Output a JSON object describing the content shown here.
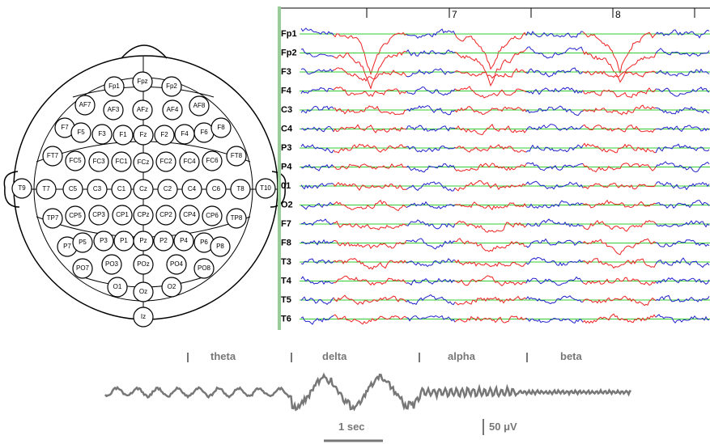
{
  "electrode_map": {
    "electrodes": [
      "Fp1",
      "Fpz",
      "Fp2",
      "AF7",
      "AF3",
      "AFz",
      "AF4",
      "AF8",
      "F7",
      "F5",
      "F3",
      "F1",
      "Fz",
      "F2",
      "F4",
      "F6",
      "F8",
      "FT7",
      "FC5",
      "FC3",
      "FC1",
      "FCz",
      "FC2",
      "FC4",
      "FC6",
      "FT8",
      "T9",
      "T7",
      "C5",
      "C3",
      "C1",
      "Cz",
      "C2",
      "C4",
      "C6",
      "T8",
      "T10",
      "TP7",
      "CP5",
      "CP3",
      "CP1",
      "CPz",
      "CP2",
      "CP4",
      "CP6",
      "TP8",
      "P7",
      "P5",
      "P3",
      "P1",
      "Pz",
      "P2",
      "P4",
      "P6",
      "P8",
      "PO7",
      "PO3",
      "POz",
      "PO4",
      "PO8",
      "O1",
      "Oz",
      "O2",
      "Iz"
    ]
  },
  "eeg": {
    "time_markers": [
      "7",
      "8"
    ],
    "channels": [
      "Fp1",
      "Fp2",
      "F3",
      "F4",
      "C3",
      "C4",
      "P3",
      "P4",
      "01",
      "O2",
      "F7",
      "F8",
      "T3",
      "T4",
      "T5",
      "T6"
    ]
  },
  "bands": {
    "labels": [
      "theta",
      "delta",
      "alpha",
      "beta"
    ],
    "time_scale": "1 sec",
    "amplitude_scale": "50 μV"
  }
}
